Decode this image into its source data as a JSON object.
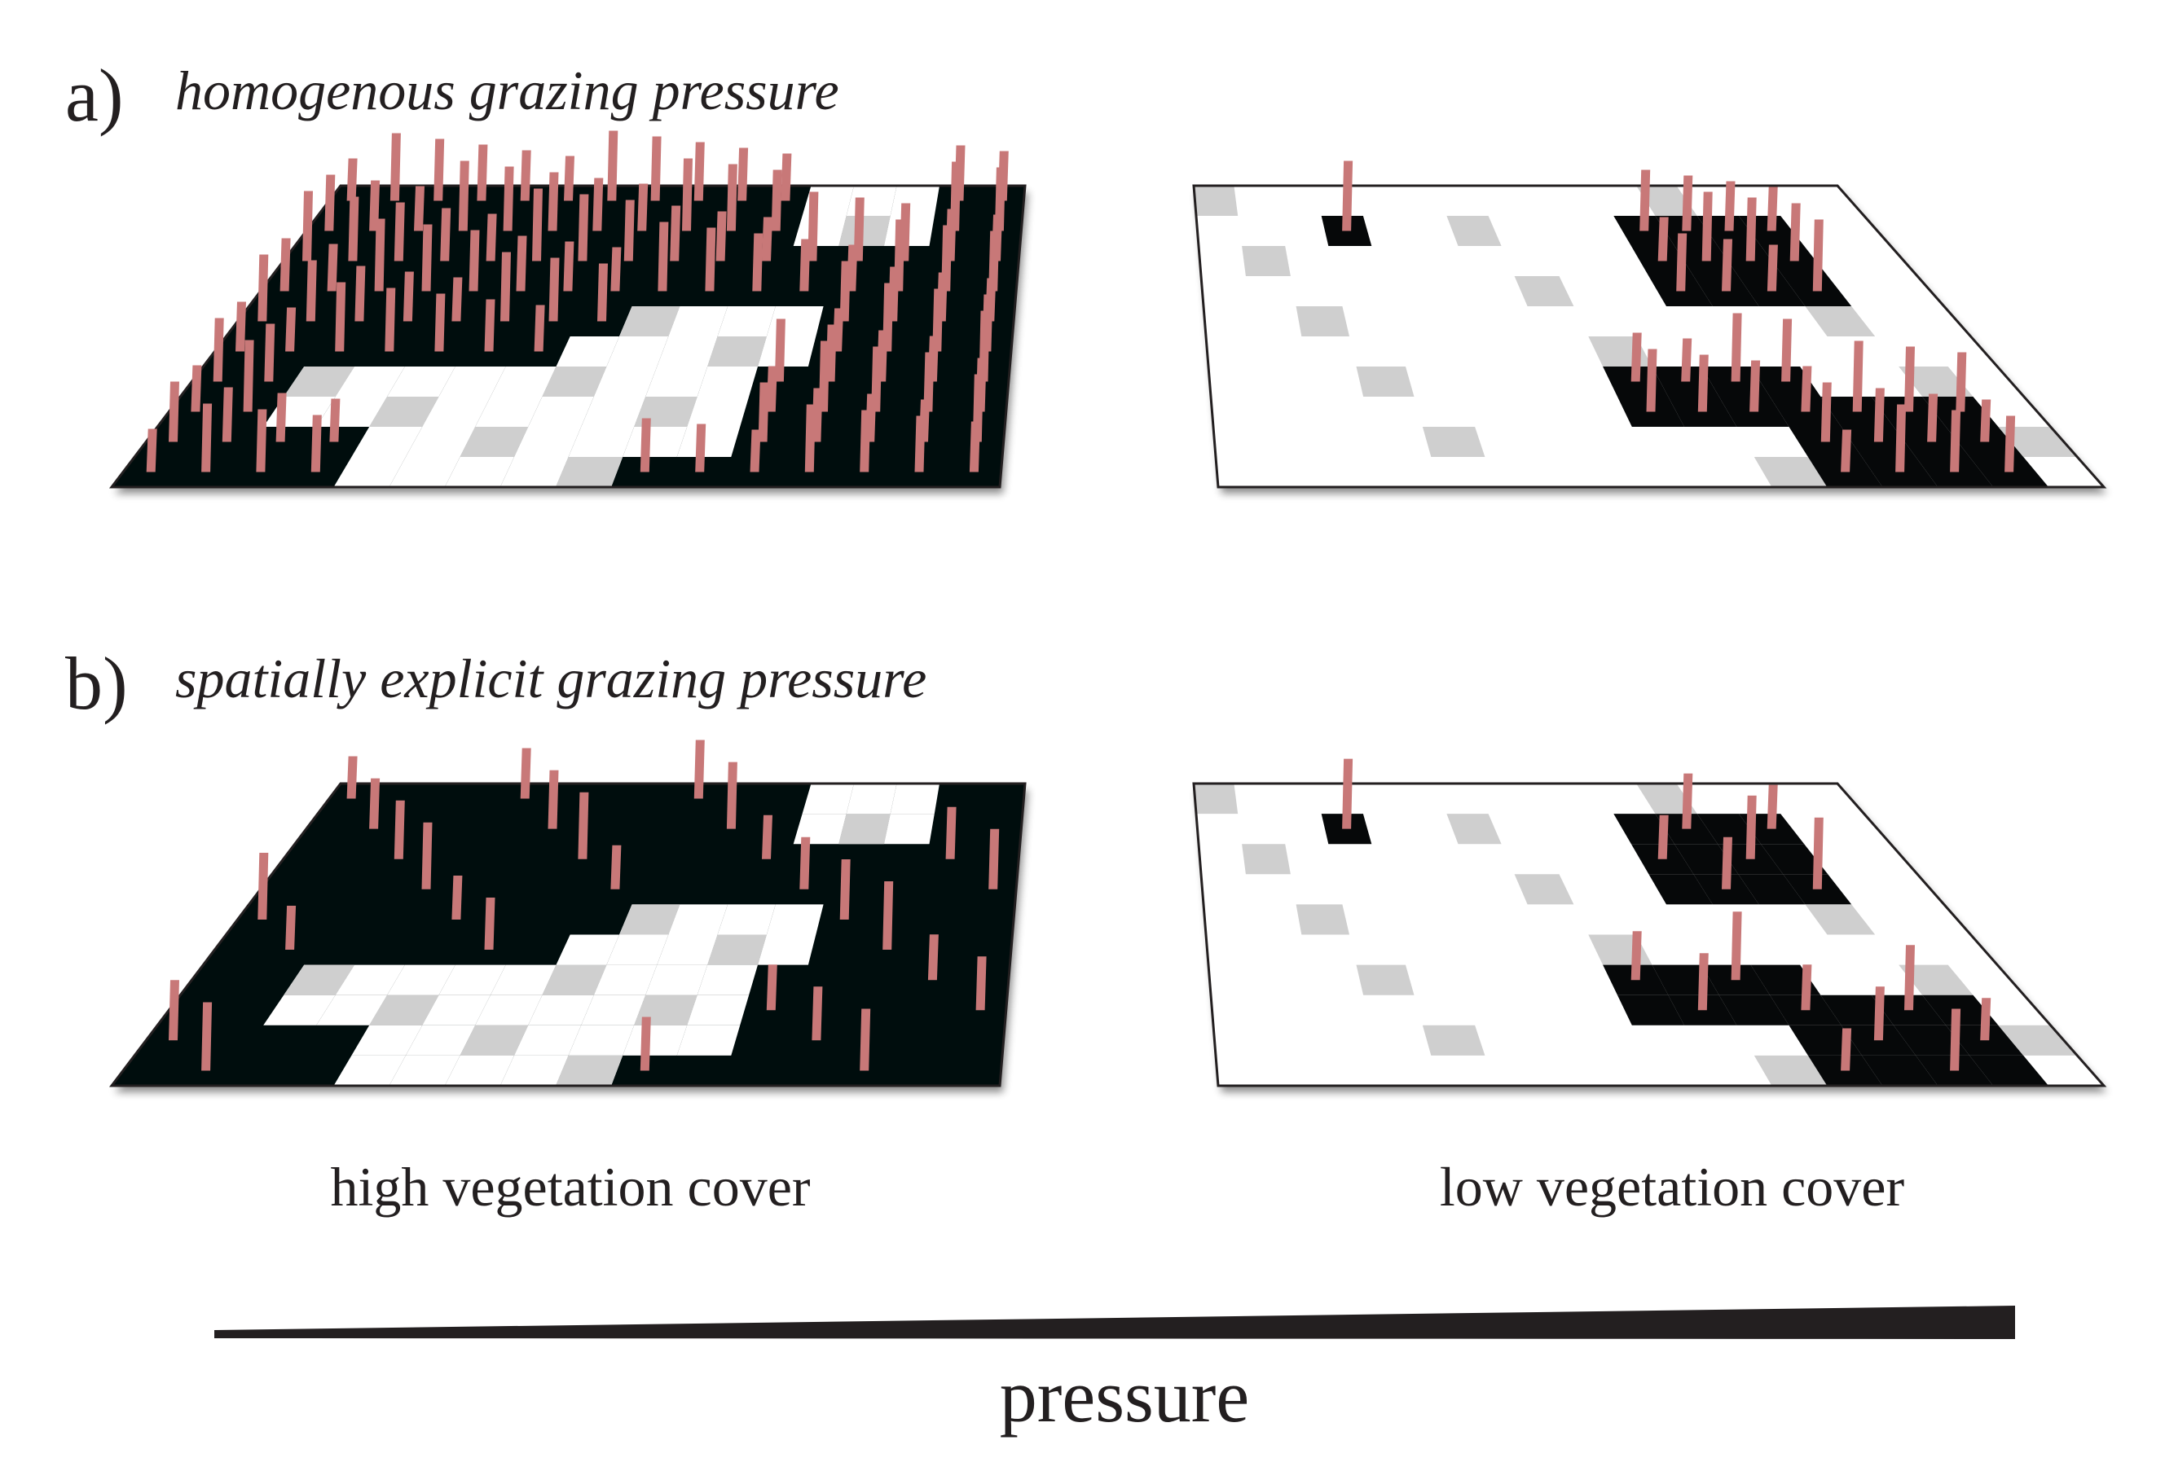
{
  "panels": {
    "a": {
      "letter": "a)",
      "title": "homogenous grazing pressure"
    },
    "b": {
      "letter": "b)",
      "title": "spatially explicit grazing pressure"
    }
  },
  "cover_labels": {
    "high": "high vegetation cover",
    "low": "low vegetation cover"
  },
  "pressure": {
    "label": "pressure"
  },
  "colors": {
    "vegetation": "#060809",
    "bare": "#ffffff",
    "shadow": "#cfcfcf",
    "grazer": "#c87878",
    "outline": "#231f20"
  }
}
